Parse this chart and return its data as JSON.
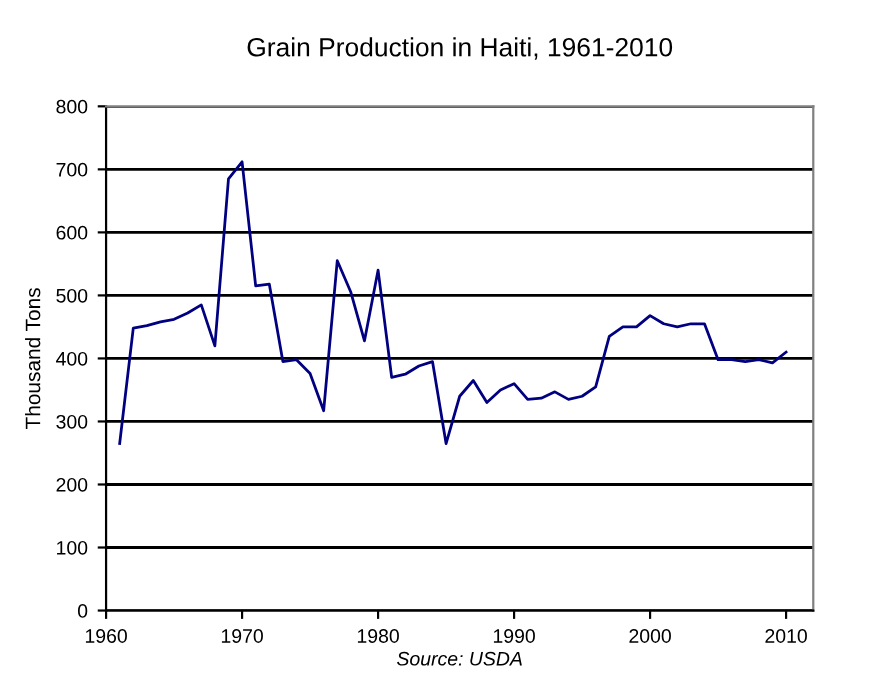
{
  "chart_data": {
    "type": "line",
    "title": "Grain Production in Haiti, 1961-2010",
    "ylabel": "Thousand Tons",
    "annotations": [
      "Source: USDA"
    ],
    "x": [
      1961,
      1962,
      1963,
      1964,
      1965,
      1966,
      1967,
      1968,
      1969,
      1970,
      1971,
      1972,
      1973,
      1974,
      1975,
      1976,
      1977,
      1978,
      1979,
      1980,
      1981,
      1982,
      1983,
      1984,
      1985,
      1986,
      1987,
      1988,
      1989,
      1990,
      1991,
      1992,
      1993,
      1994,
      1995,
      1996,
      1997,
      1998,
      1999,
      2000,
      2001,
      2002,
      2003,
      2004,
      2005,
      2006,
      2007,
      2008,
      2009,
      2010
    ],
    "series": [
      {
        "color": "#000080",
        "values": [
          265,
          448,
          452,
          458,
          462,
          472,
          485,
          420,
          685,
          712,
          515,
          518,
          395,
          398,
          376,
          317,
          555,
          505,
          428,
          540,
          370,
          375,
          388,
          395,
          265,
          340,
          365,
          330,
          350,
          360,
          335,
          337,
          347,
          335,
          340,
          355,
          435,
          450,
          450,
          468,
          455,
          450,
          455,
          455,
          398,
          398,
          395,
          398,
          393,
          410
        ]
      }
    ],
    "xlim": [
      1960,
      2012
    ],
    "xticks": [
      1960,
      1970,
      1980,
      1990,
      2000,
      2010
    ],
    "ylim": [
      0,
      800
    ],
    "yticks": [
      0,
      100,
      200,
      300,
      400,
      500,
      600,
      700,
      800
    ],
    "grid": "y",
    "legend": false,
    "marker": "none",
    "line_style": "solid"
  }
}
